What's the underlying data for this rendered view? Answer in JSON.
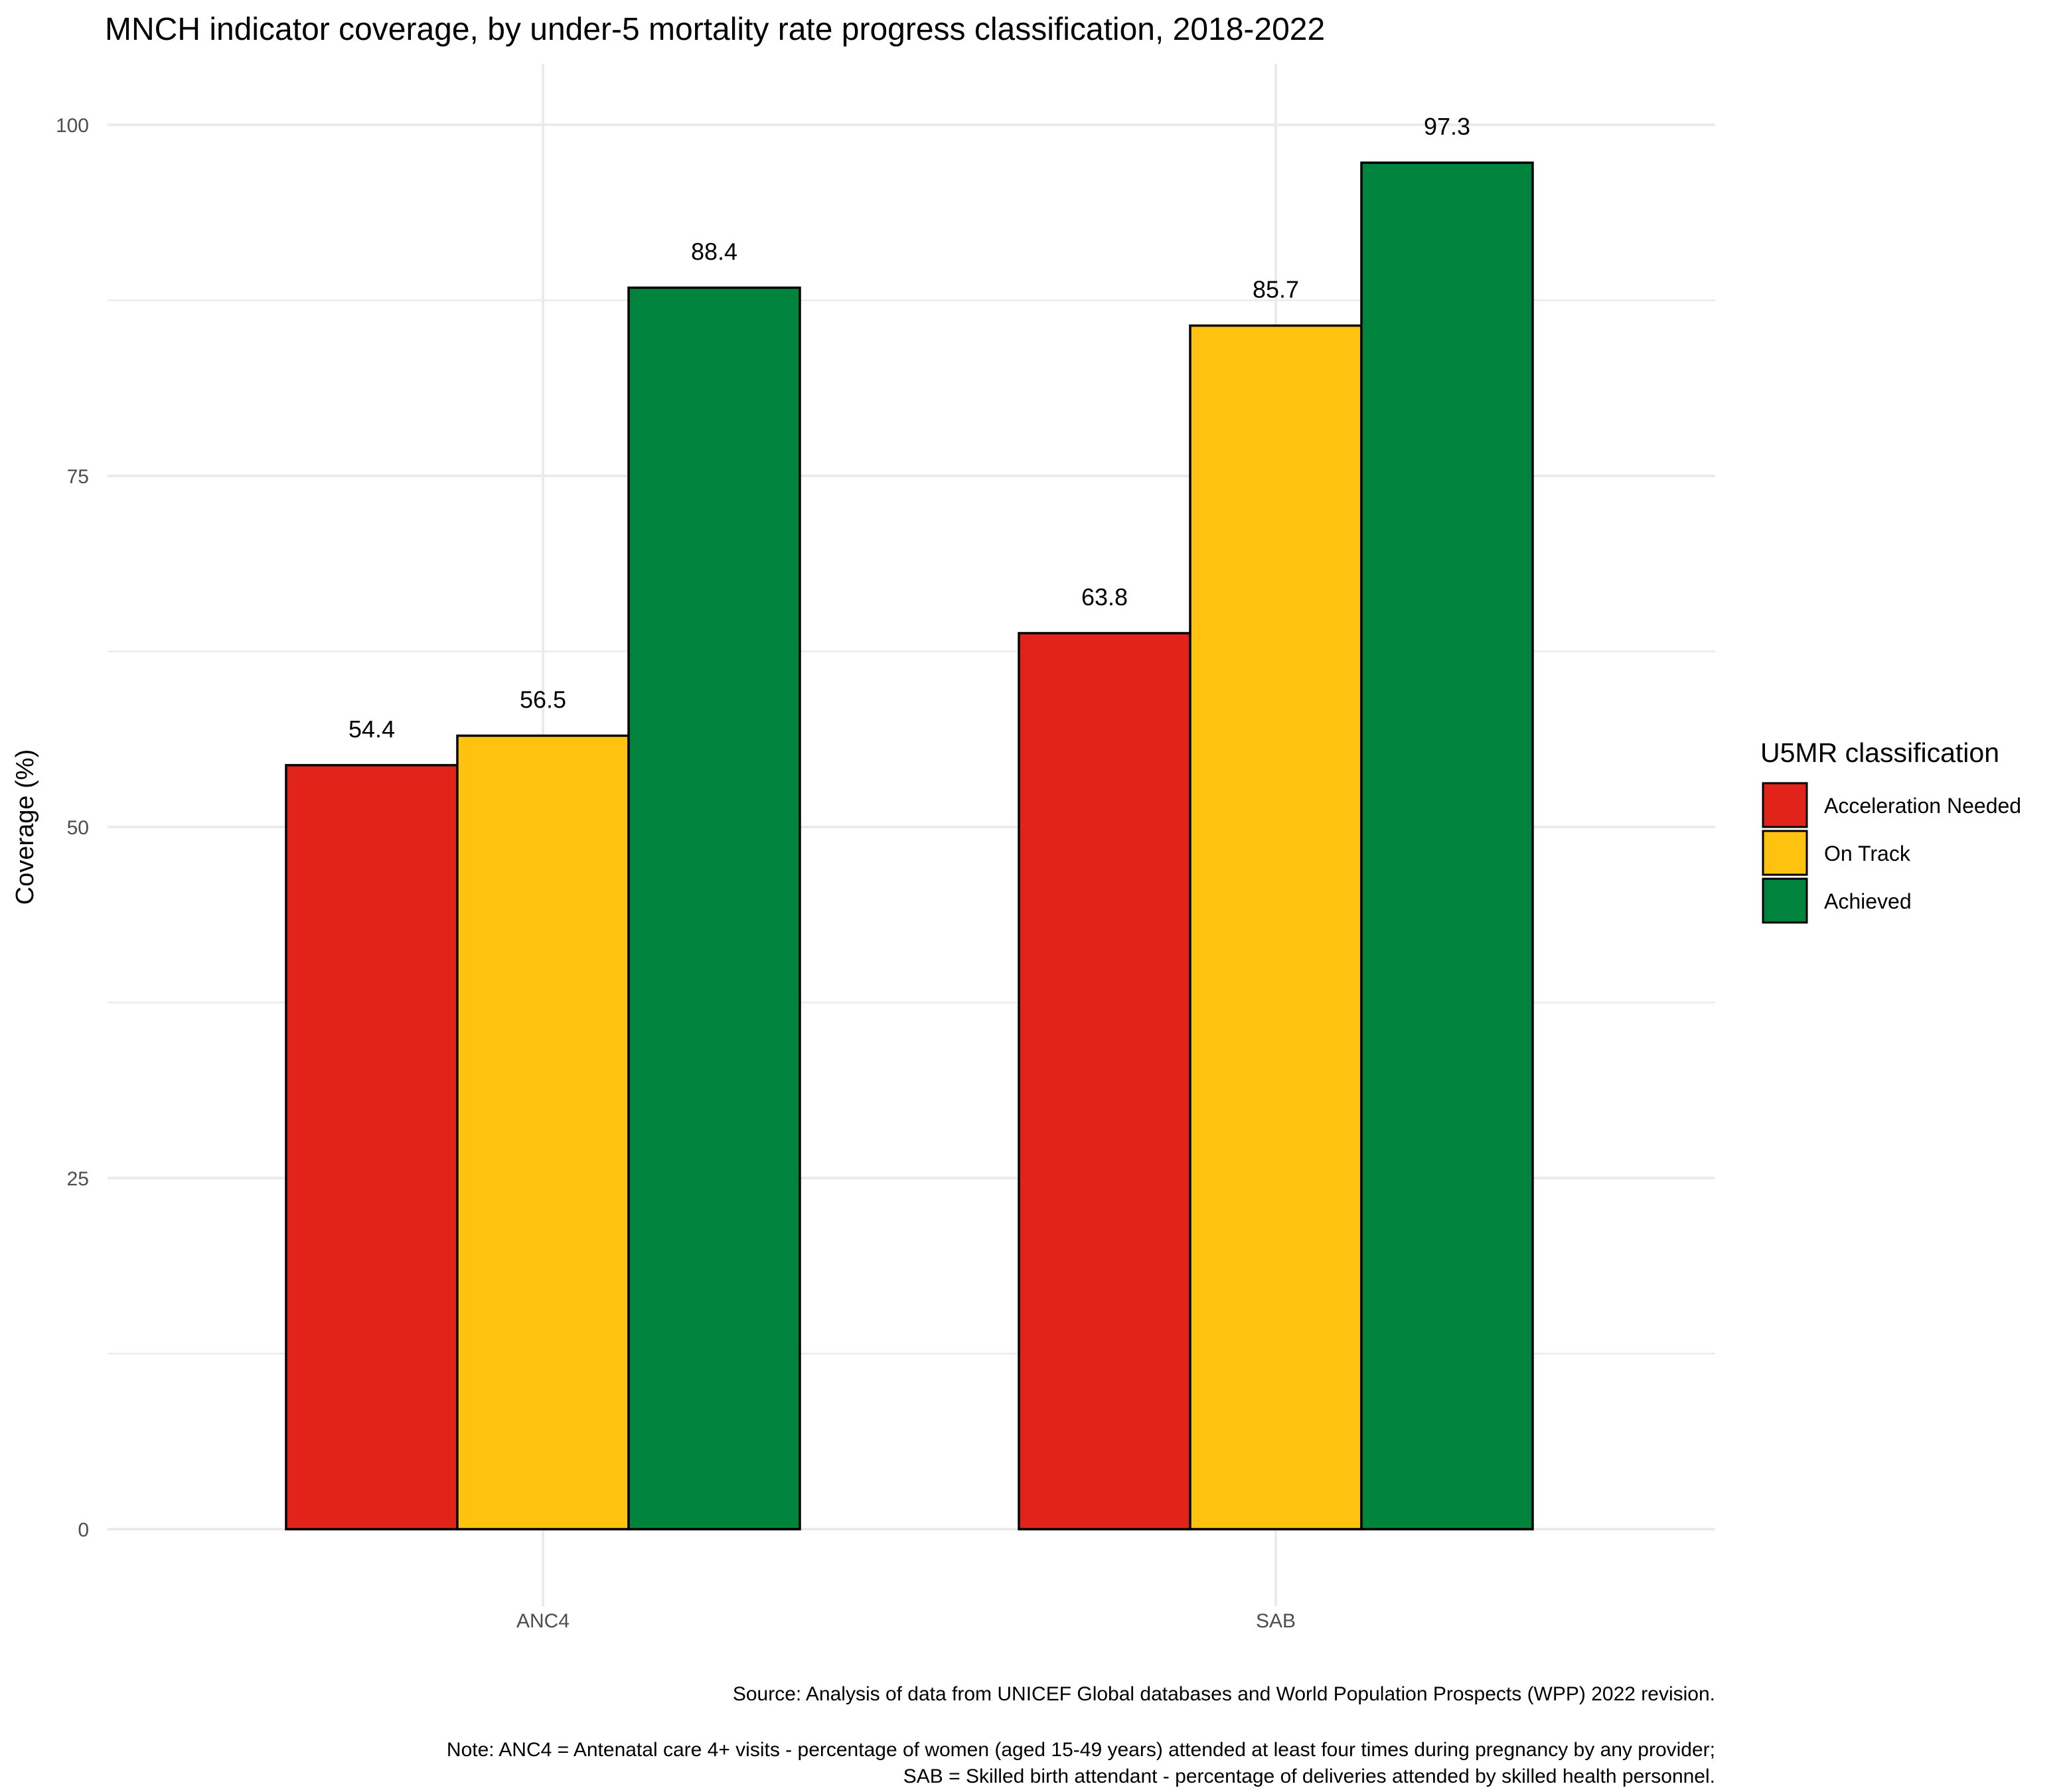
{
  "chart_data": {
    "type": "bar",
    "title": "MNCH indicator coverage, by under-5 mortality rate progress classification, 2018-2022",
    "xlabel": "",
    "ylabel": "Coverage (%)",
    "ylim": [
      0,
      100
    ],
    "yticks": [
      0,
      25,
      50,
      75,
      100
    ],
    "grid": true,
    "categories": [
      "ANC4",
      "SAB"
    ],
    "series": [
      {
        "name": "Acceleration Needed",
        "color": "#e2231a",
        "values": [
          54.4,
          63.8
        ]
      },
      {
        "name": "On Track",
        "color": "#ffc20e",
        "values": [
          56.5,
          85.7
        ]
      },
      {
        "name": "Achieved",
        "color": "#00833d",
        "values": [
          88.4,
          97.3
        ]
      }
    ],
    "legend": {
      "title": "U5MR classification",
      "position": "right"
    },
    "caption": [
      "Source: Analysis of data from UNICEF Global databases and World Population Prospects (WPP) 2022 revision.",
      "Note: ANC4 = Antenatal care 4+ visits - percentage of women (aged 15-49 years) attended at least four times during pregnancy by any provider;",
      "SAB = Skilled birth attendant - percentage of deliveries attended by skilled health personnel."
    ]
  }
}
